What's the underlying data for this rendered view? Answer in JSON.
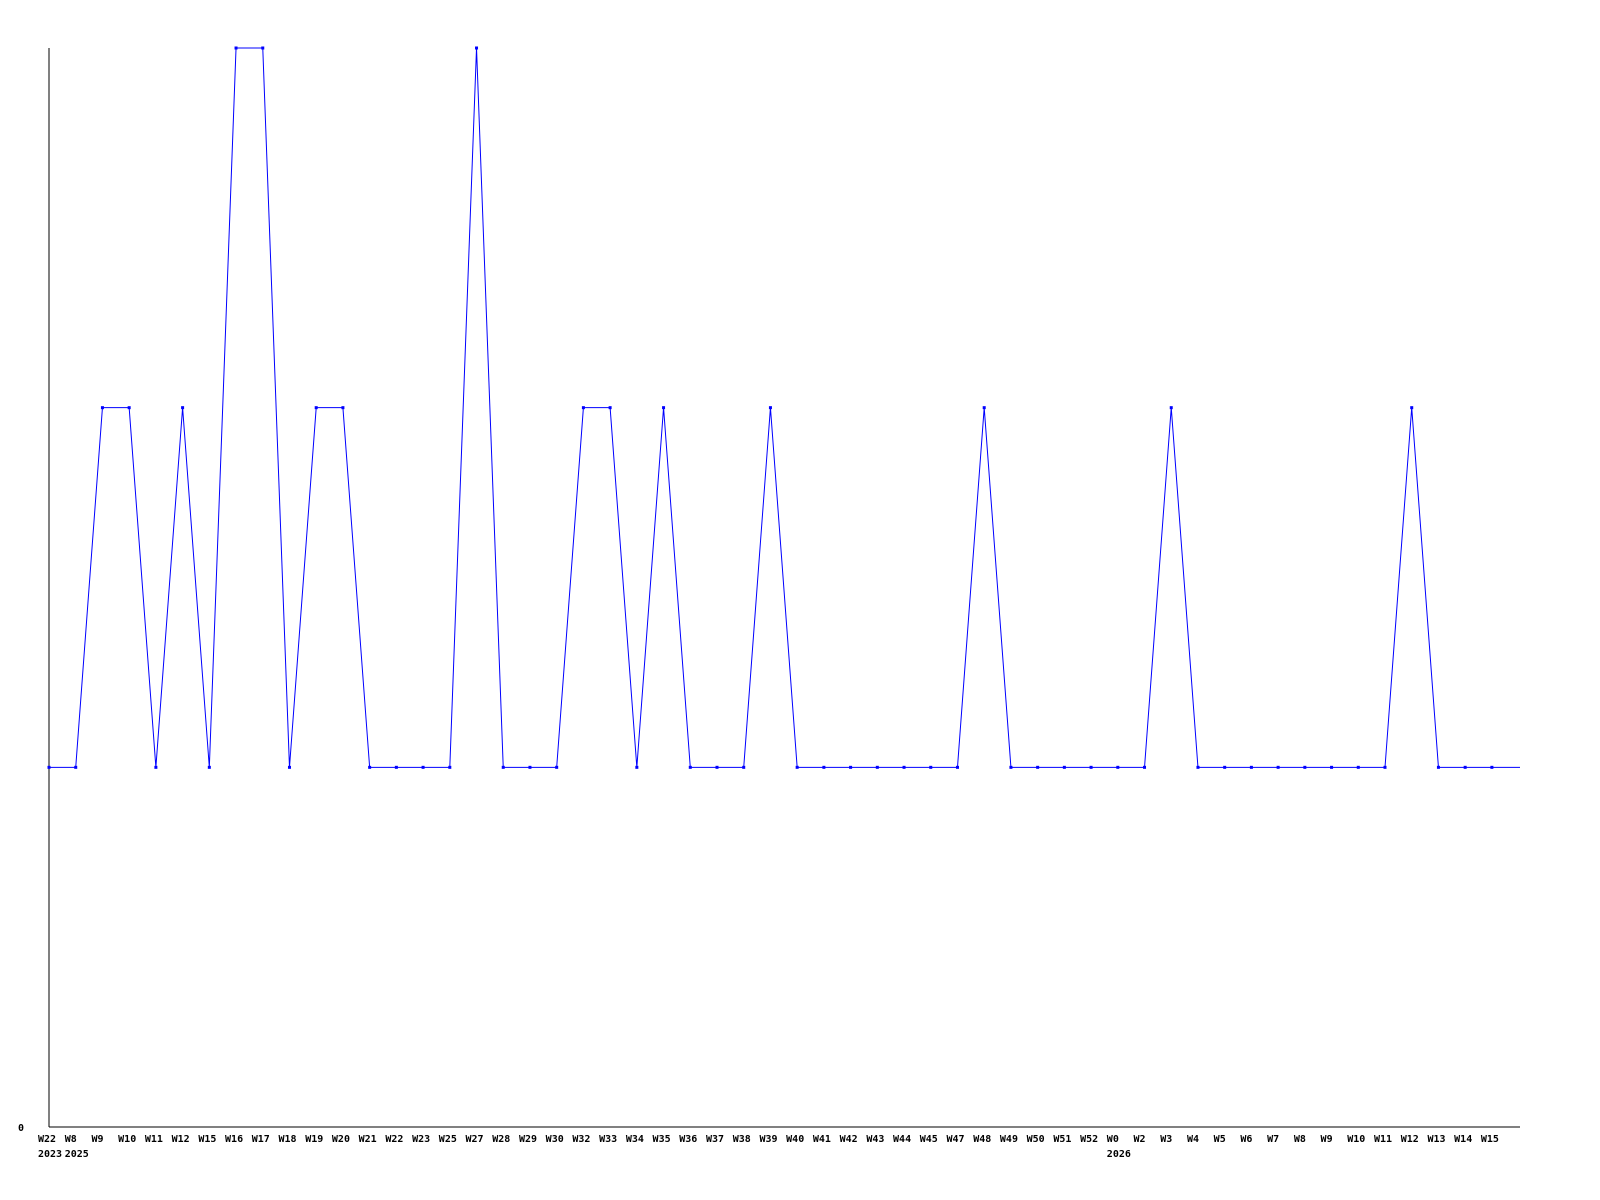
{
  "chart_data": {
    "type": "line",
    "title": "",
    "xlabel": "",
    "ylabel": "",
    "ylim": [
      0,
      3
    ],
    "y_tick_labels": [
      "0"
    ],
    "grid": false,
    "line_color": "#0000ff",
    "categories": [
      "W22",
      "W8",
      "W9",
      "W10",
      "W11",
      "W12",
      "W15",
      "W16",
      "W17",
      "W18",
      "W19",
      "W20",
      "W21",
      "W22",
      "W23",
      "W25",
      "W27",
      "W28",
      "W29",
      "W30",
      "W32",
      "W33",
      "W34",
      "W35",
      "W36",
      "W37",
      "W38",
      "W39",
      "W40",
      "W41",
      "W42",
      "W43",
      "W44",
      "W45",
      "W47",
      "W48",
      "W49",
      "W50",
      "W51",
      "W52",
      "W0",
      "W2",
      "W3",
      "W4",
      "W5",
      "W6",
      "W7",
      "W8",
      "W9",
      "W10",
      "W11",
      "W12",
      "W13",
      "W14",
      "W15"
    ],
    "year_labels": [
      {
        "label": "2023",
        "at_index": 0
      },
      {
        "label": "2025",
        "at_index": 1
      },
      {
        "label": "2026",
        "at_index": 40
      }
    ],
    "values": [
      1,
      1,
      2,
      2,
      1,
      2,
      1,
      3,
      3,
      1,
      2,
      2,
      1,
      1,
      1,
      1,
      3,
      1,
      1,
      1,
      2,
      2,
      1,
      2,
      1,
      1,
      1,
      2,
      1,
      1,
      1,
      1,
      1,
      1,
      1,
      2,
      1,
      1,
      1,
      1,
      1,
      1,
      2,
      1,
      1,
      1,
      1,
      1,
      1,
      1,
      1,
      2,
      1,
      1,
      1
    ]
  }
}
